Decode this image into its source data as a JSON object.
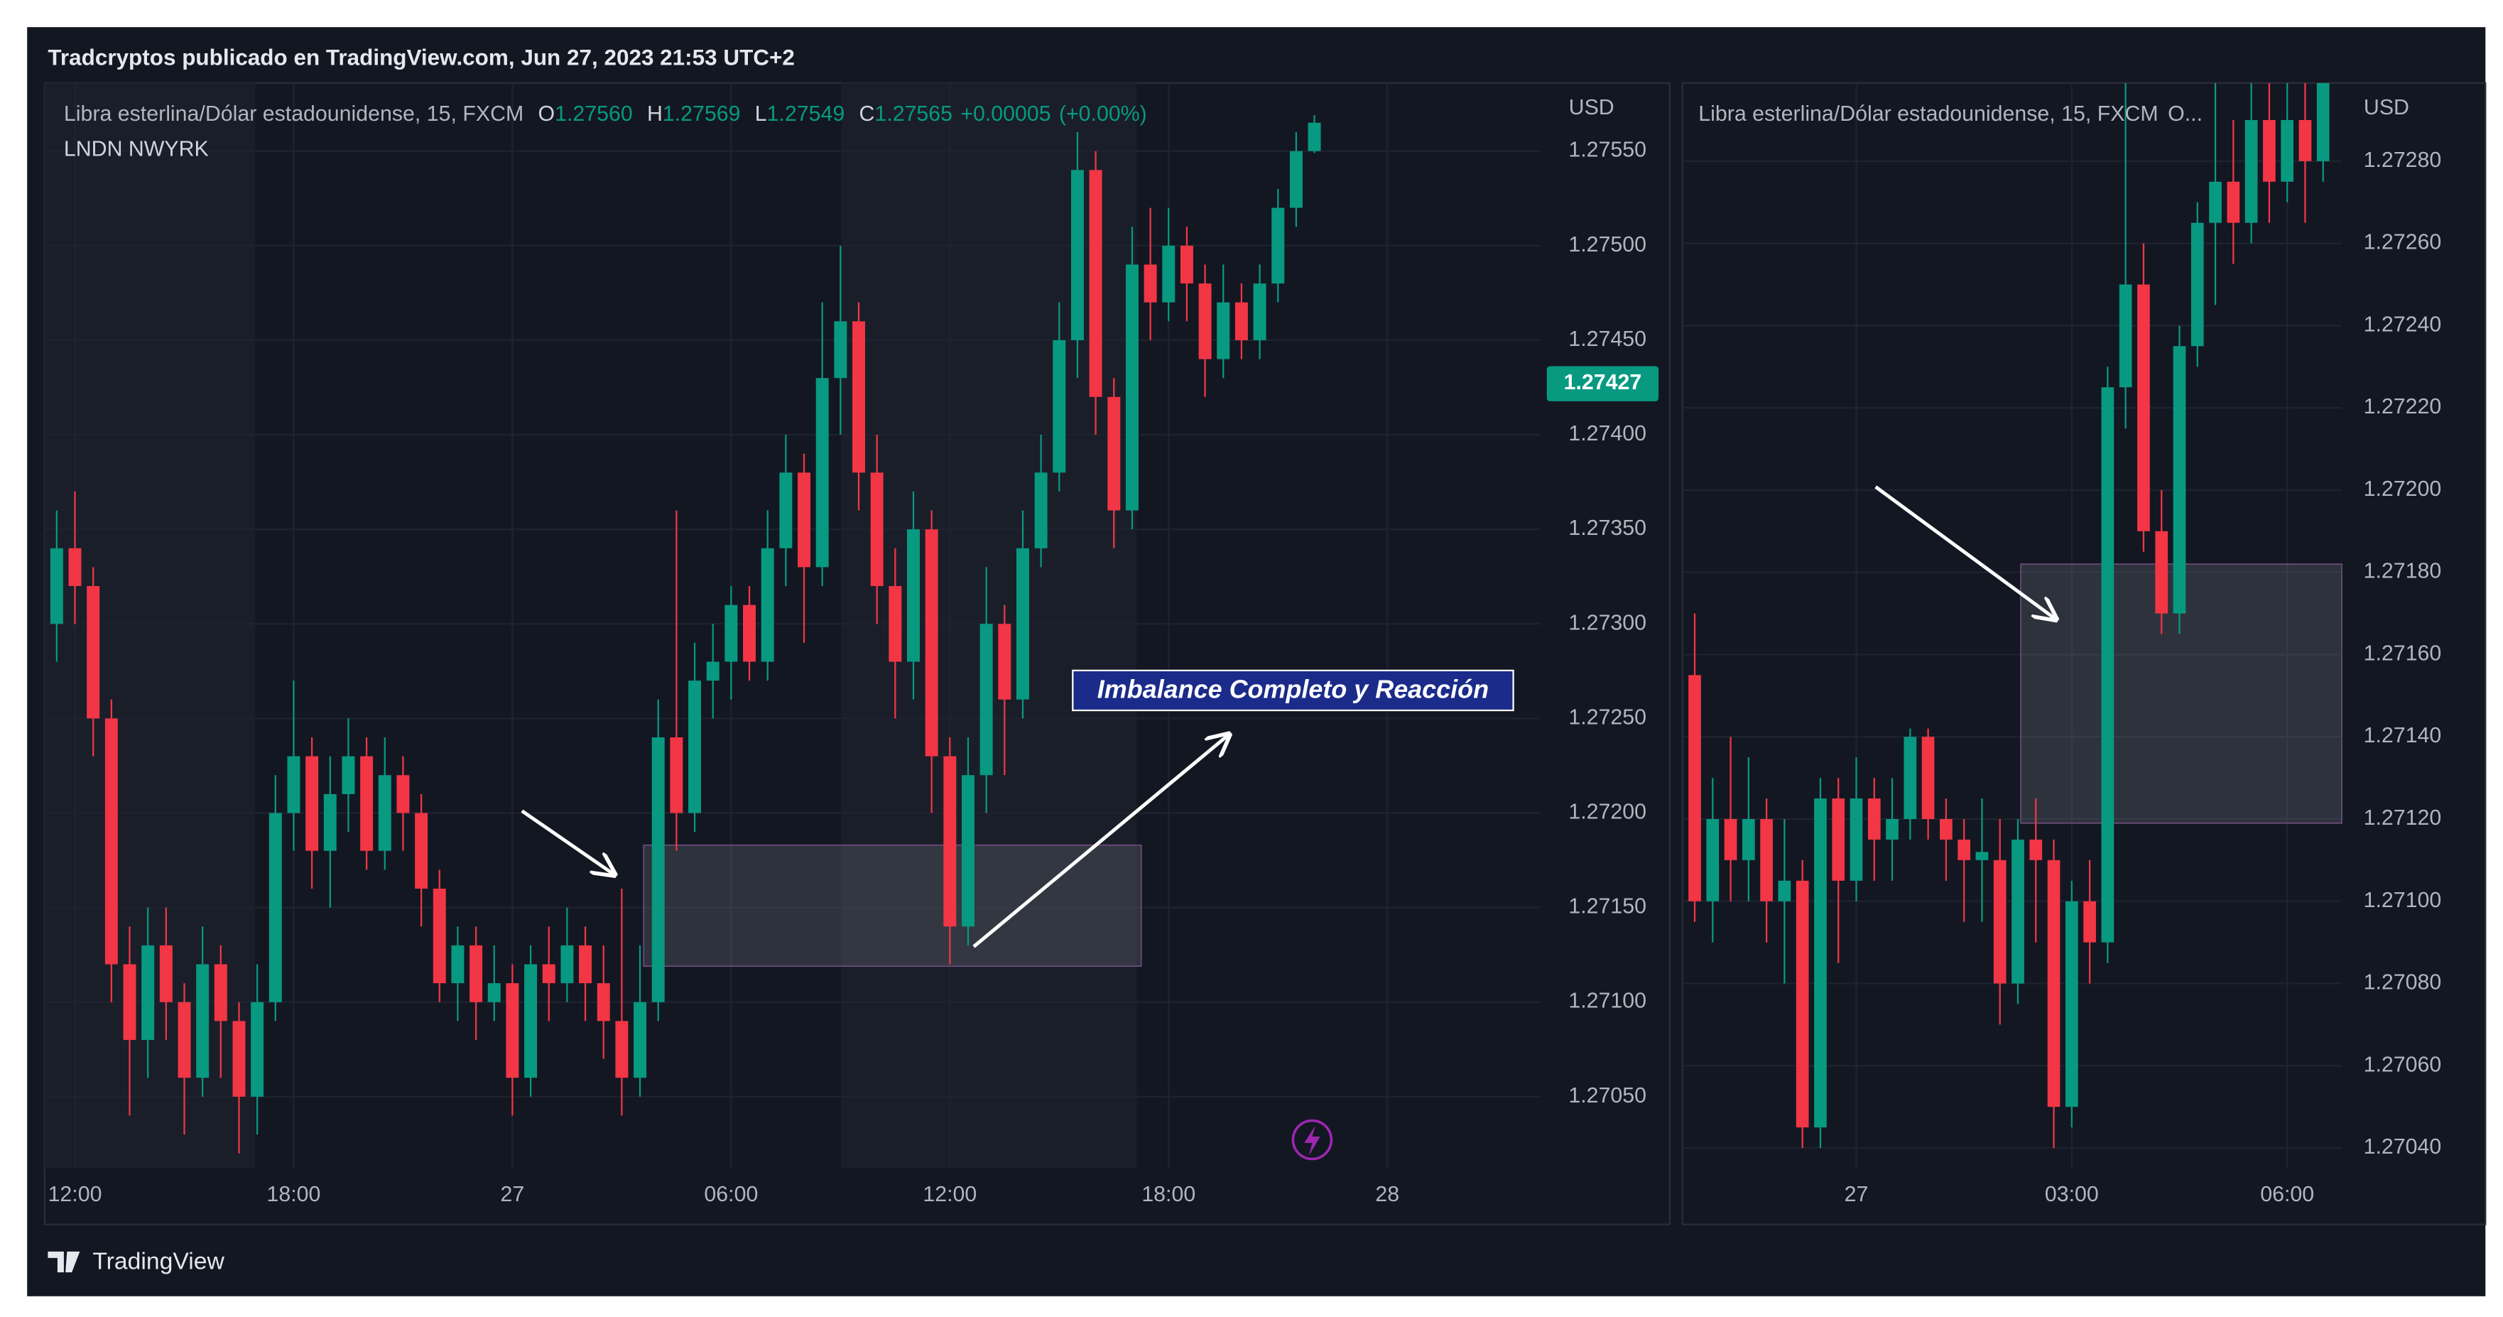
{
  "header": {
    "title": "Tradcryptos publicado en TradingView.com, Jun 27, 2023 21:53 UTC+2"
  },
  "footer": {
    "brand": "TradingView"
  },
  "chart_data": [
    {
      "type": "candlestick",
      "legend": {
        "symbol": "Libra esterlina/Dólar estadounidense, 15, FXCM",
        "items": [
          {
            "key": "O",
            "value": {
              "value": 1.2756,
              "label": "1.27560"
            }
          },
          {
            "key": "H",
            "value": 1.27569
          },
          {
            "key": "L",
            "value": 1.27549
          },
          {
            "key": "C",
            "value": 1.27565
          }
        ],
        "change": {
          "value": 5e-05,
          "label": "+0.00005"
        },
        "change_pct": {
          "value": 0,
          "label": "(+0.00%)"
        }
      },
      "subtitle": "LNDN NWYRK",
      "currency": "USD",
      "annotation": "Imbalance Completo y Reacción",
      "price_tag": 1.27427,
      "price_tag_color": "#089981",
      "colors": {
        "up": "#089981",
        "down": "#f23645"
      },
      "grid": true,
      "xlim": [
        11.17,
        52.2
      ],
      "xticks": [
        {
          "value": 12,
          "label": "12:00"
        },
        {
          "value": 18,
          "label": "18:00"
        },
        {
          "value": 24,
          "label": "27"
        },
        {
          "value": 30,
          "label": "06:00"
        },
        {
          "value": 36,
          "label": "12:00"
        },
        {
          "value": 42,
          "label": "18:00"
        },
        {
          "value": 48,
          "label": "28"
        }
      ],
      "ylim": [
        1.27012,
        1.27586
      ],
      "yticks": [
        {
          "value": 1.2705,
          "label": "1.27050"
        },
        {
          "value": 1.271,
          "label": "1.27100"
        },
        {
          "value": 1.2715,
          "label": "1.27150"
        },
        {
          "value": 1.272,
          "label": "1.27200"
        },
        {
          "value": 1.2725,
          "label": "1.27250"
        },
        {
          "value": 1.273,
          "label": "1.27300"
        },
        {
          "value": 1.2735,
          "label": "1.27350"
        },
        {
          "value": 1.274,
          "label": "1.27400"
        },
        {
          "value": 1.2745,
          "label": "1.27450"
        },
        {
          "value": 1.275,
          "label": "1.27500"
        },
        {
          "value": 1.2755,
          "label": "1.27550"
        }
      ],
      "zone": {
        "x0": 27.6,
        "x1": 41.25,
        "y0": 1.27119,
        "y1": 1.27183
      },
      "x": [
        11.5,
        12,
        12.5,
        13,
        13.5,
        14,
        14.5,
        15,
        15.5,
        16,
        16.5,
        17,
        17.5,
        18,
        18.5,
        19,
        19.5,
        20,
        20.5,
        21,
        21.5,
        22,
        22.5,
        23,
        23.5,
        24,
        24.5,
        25,
        25.5,
        26,
        26.5,
        27,
        27.5,
        28,
        28.5,
        29,
        29.5,
        30,
        30.5,
        31,
        31.5,
        32,
        32.5,
        33,
        33.5,
        34,
        34.5,
        35,
        35.5,
        36,
        36.5,
        37,
        37.5,
        38,
        38.5,
        39,
        39.5,
        40,
        40.5,
        41,
        41.5,
        42,
        42.5,
        43,
        43.5,
        44,
        44.5,
        45,
        45.5,
        46
      ],
      "open": [
        1.273,
        1.2734,
        1.2732,
        1.2725,
        1.2712,
        1.2708,
        1.2713,
        1.271,
        1.2706,
        1.2712,
        1.2709,
        1.2705,
        1.271,
        1.272,
        1.2723,
        1.2718,
        1.2721,
        1.2723,
        1.2718,
        1.2722,
        1.272,
        1.2716,
        1.2711,
        1.2713,
        1.271,
        1.2711,
        1.2706,
        1.2712,
        1.2711,
        1.2713,
        1.2711,
        1.2709,
        1.2706,
        1.271,
        1.2724,
        1.272,
        1.2727,
        1.2728,
        1.2731,
        1.2728,
        1.2734,
        1.2738,
        1.2733,
        1.2743,
        1.2746,
        1.2738,
        1.2732,
        1.2728,
        1.2735,
        1.2723,
        1.2714,
        1.2722,
        1.273,
        1.2726,
        1.2734,
        1.2738,
        1.2745,
        1.2754,
        1.2742,
        1.2736,
        1.2749,
        1.2747,
        1.275,
        1.2748,
        1.2744,
        1.2747,
        1.2745,
        1.2748,
        1.2752,
        1.2755
      ],
      "high": [
        1.2736,
        1.2737,
        1.2733,
        1.2726,
        1.2714,
        1.2715,
        1.2715,
        1.2711,
        1.2714,
        1.2713,
        1.271,
        1.2712,
        1.2722,
        1.2727,
        1.2724,
        1.2723,
        1.2725,
        1.2724,
        1.2724,
        1.2723,
        1.2721,
        1.2717,
        1.2714,
        1.2714,
        1.2713,
        1.2712,
        1.2713,
        1.2714,
        1.2715,
        1.2714,
        1.2713,
        1.2716,
        1.2713,
        1.2726,
        1.2736,
        1.2729,
        1.273,
        1.2732,
        1.2732,
        1.2736,
        1.274,
        1.2739,
        1.2747,
        1.275,
        1.2747,
        1.274,
        1.2734,
        1.2737,
        1.2736,
        1.2724,
        1.2724,
        1.2733,
        1.2731,
        1.2736,
        1.274,
        1.2747,
        1.2756,
        1.2755,
        1.2743,
        1.2751,
        1.2752,
        1.2752,
        1.2751,
        1.2749,
        1.2749,
        1.2748,
        1.2749,
        1.2753,
        1.2756,
        1.27569
      ],
      "low": [
        1.2728,
        1.273,
        1.2723,
        1.271,
        1.2704,
        1.2706,
        1.2708,
        1.2703,
        1.2705,
        1.2706,
        1.2702,
        1.2703,
        1.2709,
        1.2718,
        1.2716,
        1.2715,
        1.2719,
        1.2717,
        1.2717,
        1.2718,
        1.2714,
        1.271,
        1.2709,
        1.2708,
        1.2709,
        1.2704,
        1.2705,
        1.2709,
        1.271,
        1.2709,
        1.2707,
        1.2704,
        1.2705,
        1.2709,
        1.2718,
        1.2719,
        1.2725,
        1.2726,
        1.2727,
        1.2727,
        1.2732,
        1.2729,
        1.2732,
        1.274,
        1.2736,
        1.273,
        1.2725,
        1.2726,
        1.272,
        1.2712,
        1.2713,
        1.272,
        1.2722,
        1.2725,
        1.2733,
        1.2737,
        1.2743,
        1.274,
        1.2734,
        1.2735,
        1.2745,
        1.2746,
        1.2746,
        1.2742,
        1.2743,
        1.2744,
        1.2744,
        1.2747,
        1.2751,
        1.27549
      ],
      "close": [
        1.2734,
        1.2732,
        1.2725,
        1.2712,
        1.2708,
        1.2713,
        1.271,
        1.2706,
        1.2712,
        1.2709,
        1.2705,
        1.271,
        1.272,
        1.2723,
        1.2718,
        1.2721,
        1.2723,
        1.2718,
        1.2722,
        1.272,
        1.2716,
        1.2711,
        1.2713,
        1.271,
        1.2711,
        1.2706,
        1.2712,
        1.2711,
        1.2713,
        1.2711,
        1.2709,
        1.2706,
        1.271,
        1.2724,
        1.272,
        1.2727,
        1.2728,
        1.2731,
        1.2728,
        1.2734,
        1.2738,
        1.2733,
        1.2743,
        1.2746,
        1.2738,
        1.2732,
        1.2728,
        1.2735,
        1.2723,
        1.2714,
        1.2722,
        1.273,
        1.2726,
        1.2734,
        1.2738,
        1.2745,
        1.2754,
        1.2742,
        1.2736,
        1.2749,
        1.2747,
        1.275,
        1.2748,
        1.2744,
        1.2747,
        1.2745,
        1.2748,
        1.2752,
        1.2755,
        1.27565
      ]
    },
    {
      "type": "candlestick",
      "legend": {
        "symbol": "Libra esterlina/Dólar estadounidense, 15, FXCM",
        "truncated": "O..."
      },
      "currency": "USD",
      "colors": {
        "up": "#089981",
        "down": "#f23645"
      },
      "grid": true,
      "xlim": [
        21.58,
        30.76
      ],
      "xticks": [
        {
          "value": 24,
          "label": "27"
        },
        {
          "value": 27,
          "label": "03:00"
        },
        {
          "value": 30,
          "label": "06:00"
        }
      ],
      "ylim": [
        1.27035,
        1.27299
      ],
      "yticks": [
        {
          "value": 1.2704,
          "label": "1.27040"
        },
        {
          "value": 1.2706,
          "label": "1.27060"
        },
        {
          "value": 1.2708,
          "label": "1.27080"
        },
        {
          "value": 1.271,
          "label": "1.27100"
        },
        {
          "value": 1.2712,
          "label": "1.27120"
        },
        {
          "value": 1.2714,
          "label": "1.27140"
        },
        {
          "value": 1.2716,
          "label": "1.27160"
        },
        {
          "value": 1.2718,
          "label": "1.27180"
        },
        {
          "value": 1.272,
          "label": "1.27200"
        },
        {
          "value": 1.2722,
          "label": "1.27220"
        },
        {
          "value": 1.2724,
          "label": "1.27240"
        },
        {
          "value": 1.2726,
          "label": "1.27260"
        },
        {
          "value": 1.2728,
          "label": "1.27280"
        }
      ],
      "zone": {
        "x0": 26.29,
        "x1": 30.76,
        "y0": 1.27119,
        "y1": 1.27182
      },
      "x": [
        21.75,
        22,
        22.25,
        22.5,
        22.75,
        23,
        23.25,
        23.5,
        23.75,
        24,
        24.25,
        24.5,
        24.75,
        25,
        25.25,
        25.5,
        25.75,
        26,
        26.25,
        26.5,
        26.75,
        27,
        27.25,
        27.5,
        27.75,
        28,
        28.25,
        28.5,
        28.75,
        29,
        29.25,
        29.5,
        29.75,
        30,
        30.25,
        30.5
      ],
      "open": [
        1.27155,
        1.271,
        1.2712,
        1.2711,
        1.2712,
        1.271,
        1.27105,
        1.27045,
        1.27125,
        1.27105,
        1.27125,
        1.27115,
        1.2712,
        1.2714,
        1.2712,
        1.27115,
        1.2711,
        1.2711,
        1.2708,
        1.27115,
        1.2711,
        1.2705,
        1.271,
        1.2709,
        1.27225,
        1.2725,
        1.2719,
        1.2717,
        1.27235,
        1.27265,
        1.27275,
        1.27265,
        1.2729,
        1.27275,
        1.2729,
        1.2728
      ],
      "high": [
        1.2717,
        1.2713,
        1.2714,
        1.27135,
        1.27125,
        1.2712,
        1.2711,
        1.2713,
        1.2713,
        1.27135,
        1.2713,
        1.2713,
        1.27142,
        1.27142,
        1.27125,
        1.2712,
        1.27125,
        1.2712,
        1.2712,
        1.27125,
        1.27115,
        1.27105,
        1.2711,
        1.2723,
        1.273,
        1.2726,
        1.272,
        1.2724,
        1.2727,
        1.273,
        1.2729,
        1.273,
        1.273,
        1.273,
        1.273,
        1.273
      ],
      "low": [
        1.27095,
        1.2709,
        1.271,
        1.271,
        1.2709,
        1.2708,
        1.2704,
        1.2704,
        1.27085,
        1.271,
        1.27105,
        1.27105,
        1.27115,
        1.27115,
        1.27105,
        1.27095,
        1.27095,
        1.2707,
        1.27075,
        1.2709,
        1.2704,
        1.27045,
        1.2708,
        1.27085,
        1.27215,
        1.27185,
        1.27165,
        1.27165,
        1.2723,
        1.27245,
        1.27255,
        1.2726,
        1.27265,
        1.2727,
        1.27265,
        1.27275
      ],
      "close": [
        1.271,
        1.2712,
        1.2711,
        1.2712,
        1.271,
        1.27105,
        1.27045,
        1.27125,
        1.27105,
        1.27125,
        1.27115,
        1.2712,
        1.2714,
        1.2712,
        1.27115,
        1.2711,
        1.27112,
        1.2708,
        1.27115,
        1.2711,
        1.2705,
        1.271,
        1.2709,
        1.27225,
        1.2725,
        1.2719,
        1.2717,
        1.27235,
        1.27265,
        1.27275,
        1.27265,
        1.2729,
        1.27275,
        1.2729,
        1.2728,
        1.273
      ]
    }
  ]
}
